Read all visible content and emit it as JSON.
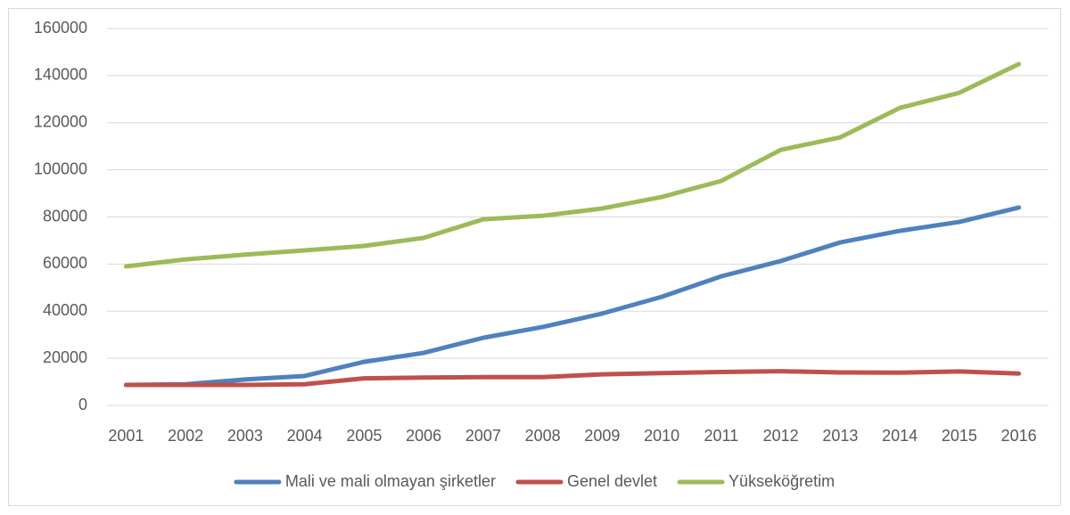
{
  "chart_data": {
    "type": "line",
    "categories": [
      "2001",
      "2002",
      "2003",
      "2004",
      "2005",
      "2006",
      "2007",
      "2008",
      "2009",
      "2010",
      "2011",
      "2012",
      "2013",
      "2014",
      "2015",
      "2016"
    ],
    "series": [
      {
        "name": "Mali ve mali olmayan şirketler",
        "color": "#4f81bd",
        "values": [
          8700,
          9000,
          11000,
          12500,
          18500,
          22300,
          28700,
          33300,
          39000,
          46100,
          54800,
          61300,
          69200,
          74100,
          77900,
          84000
        ]
      },
      {
        "name": "Genel devlet",
        "color": "#c0504d",
        "values": [
          8700,
          8700,
          8700,
          9000,
          11500,
          11800,
          12000,
          12000,
          13200,
          13700,
          14200,
          14500,
          14000,
          13900,
          14400,
          13500
        ]
      },
      {
        "name": "Yükseköğretim",
        "color": "#9bbb59",
        "values": [
          59000,
          62000,
          64000,
          65800,
          67700,
          71100,
          79000,
          80500,
          83600,
          88500,
          95300,
          108500,
          113800,
          126300,
          132700,
          144900
        ]
      }
    ],
    "ylim": [
      0,
      160000
    ],
    "yticks": [
      0,
      20000,
      40000,
      60000,
      80000,
      100000,
      120000,
      140000,
      160000
    ],
    "grid": true,
    "legend": "bottom"
  }
}
